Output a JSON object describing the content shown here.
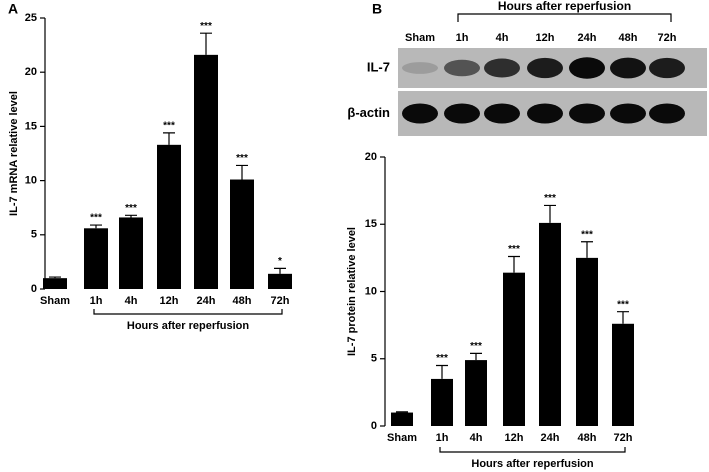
{
  "chart_data": [
    {
      "type": "bar",
      "panel_label": "A",
      "ylabel": "IL-7 mRNA relative level",
      "categories": [
        "Sham",
        "1h",
        "4h",
        "12h",
        "24h",
        "48h",
        "72h"
      ],
      "values": [
        1.0,
        5.6,
        6.6,
        13.3,
        21.6,
        10.1,
        1.4
      ],
      "errors": [
        0.1,
        0.3,
        0.2,
        1.1,
        2.0,
        1.3,
        0.5
      ],
      "annotations": [
        null,
        "***",
        "***",
        "***",
        "***",
        "***",
        "*"
      ],
      "group_label": "Hours after reperfusion",
      "color": "#000000",
      "ylim": [
        0,
        25
      ],
      "yticks": [
        0,
        5,
        10,
        15,
        20,
        25
      ]
    },
    {
      "type": "bar",
      "panel_label": "B",
      "ylabel": "IL-7 protein relative level",
      "categories": [
        "Sham",
        "1h",
        "4h",
        "12h",
        "24h",
        "48h",
        "72h"
      ],
      "values": [
        1.0,
        3.5,
        4.9,
        11.4,
        15.1,
        12.5,
        7.6
      ],
      "errors": [
        0.05,
        1.0,
        0.5,
        1.2,
        1.3,
        1.2,
        0.9
      ],
      "annotations": [
        null,
        "***",
        "***",
        "***",
        "***",
        "***",
        "***"
      ],
      "group_label": "Hours after reperfusion",
      "color": "#000000",
      "ylim": [
        0,
        20
      ],
      "yticks": [
        0,
        5,
        10,
        15,
        20
      ]
    }
  ],
  "blot": {
    "lanes": [
      "Sham",
      "1h",
      "4h",
      "12h",
      "24h",
      "48h",
      "72h"
    ],
    "group_label": "Hours after reperfusion",
    "rows": [
      "IL-7",
      "β-actin"
    ]
  }
}
